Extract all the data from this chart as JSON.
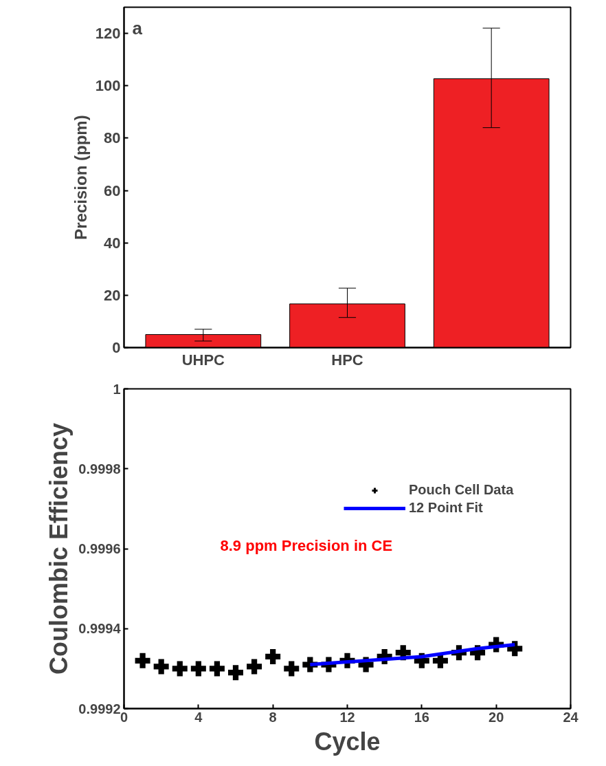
{
  "chart_data": [
    {
      "type": "bar",
      "ylabel": "Precision (ppm)",
      "annotations": [
        "a"
      ],
      "categories": [
        "UHPC",
        "HPC",
        null
      ],
      "series": [
        {
          "color": "#ee2024",
          "values": [
            5,
            16.7,
            102.7
          ],
          "errors": [
            [
              2.5,
              7
            ],
            [
              11.5,
              22.7
            ],
            [
              84,
              122
            ]
          ]
        }
      ],
      "ylim": [
        0,
        130
      ],
      "yticks": [
        0,
        20,
        40,
        60,
        80,
        100,
        120
      ],
      "grid": false
    },
    {
      "type": "scatter",
      "xlabel": "Cycle",
      "ylabel": "Coulombic Efficiency",
      "annotations": [
        "8.9 ppm Precision in CE"
      ],
      "series": [
        {
          "name": "Pouch Cell Data",
          "type": "scatter",
          "marker": "cross",
          "color": "#000000",
          "x": [
            1,
            2,
            3,
            4,
            5,
            6,
            7,
            8,
            9,
            10,
            11,
            12,
            13,
            14,
            15,
            16,
            17,
            18,
            19,
            20,
            21
          ],
          "values": [
            0.99932,
            0.999305,
            0.9993,
            0.9993,
            0.9993,
            0.99929,
            0.999305,
            0.99933,
            0.9993,
            0.99931,
            0.99931,
            0.99932,
            0.99931,
            0.99933,
            0.99934,
            0.99932,
            0.99932,
            0.99934,
            0.99934,
            0.99936,
            0.99935
          ]
        },
        {
          "name": "12 Point Fit",
          "type": "line",
          "color": "#0000ff",
          "x": [
            10,
            13,
            16,
            19,
            21
          ],
          "values": [
            0.99931,
            0.99932,
            0.99933,
            0.99935,
            0.99936
          ]
        }
      ],
      "xlim": [
        0,
        24
      ],
      "xticks": [
        0,
        4,
        8,
        12,
        16,
        20,
        24
      ],
      "ylim": [
        0.9992,
        1.0
      ],
      "yticks": [
        0.9992,
        0.9994,
        0.9996,
        0.9998,
        {
          "value": 1.0,
          "label": "1"
        }
      ],
      "grid": false,
      "legend": "top right"
    }
  ]
}
